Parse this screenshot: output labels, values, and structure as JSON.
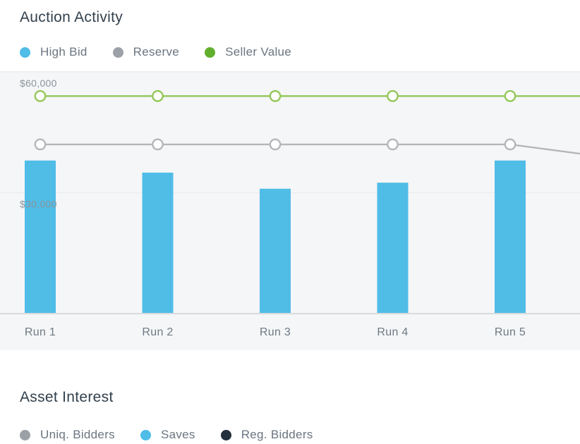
{
  "auction": {
    "title": "Auction Activity",
    "legend": [
      {
        "label": "High Bid",
        "color": "#4fbde7"
      },
      {
        "label": "Reserve",
        "color": "#9ba1a7"
      },
      {
        "label": "Seller Value",
        "color": "#61af2c"
      }
    ],
    "chart_data": {
      "type": "bar",
      "categories": [
        "Run 1",
        "Run 2",
        "Run 3",
        "Run 4",
        "Run 5"
      ],
      "series": [
        {
          "name": "High Bid",
          "type": "bar",
          "color": "#50bde7",
          "values": [
            38000,
            35000,
            31000,
            32500,
            38000
          ]
        },
        {
          "name": "Reserve",
          "type": "line",
          "color": "#b4b7ba",
          "values": [
            42000,
            42000,
            42000,
            42000,
            42000
          ],
          "edge_value": 39700
        },
        {
          "name": "Seller Value",
          "type": "line",
          "color": "#94c75a",
          "values": [
            54000,
            54000,
            54000,
            54000,
            54000
          ],
          "edge_value": 54000
        }
      ],
      "ylim": [
        0,
        60000
      ],
      "y_ticks": [
        {
          "value": 60000,
          "label": "$60,000"
        },
        {
          "value": 30000,
          "label": "$30,000"
        }
      ],
      "grid": true,
      "legend_position": "top"
    }
  },
  "asset": {
    "title": "Asset Interest",
    "legend": [
      {
        "label": "Uniq. Bidders",
        "color": "#9ba1a7"
      },
      {
        "label": "Saves",
        "color": "#4fbde7"
      },
      {
        "label": "Reg. Bidders",
        "color": "#232f3b"
      }
    ]
  },
  "colors": {
    "chart_background": "#f5f6f7",
    "gridline": "#e8eaec",
    "axis_line": "#d8dbde",
    "axis_label": "#8b949c",
    "category_label": "#6e7984",
    "title_text": "#33414d",
    "legend_text": "#6b7580"
  }
}
